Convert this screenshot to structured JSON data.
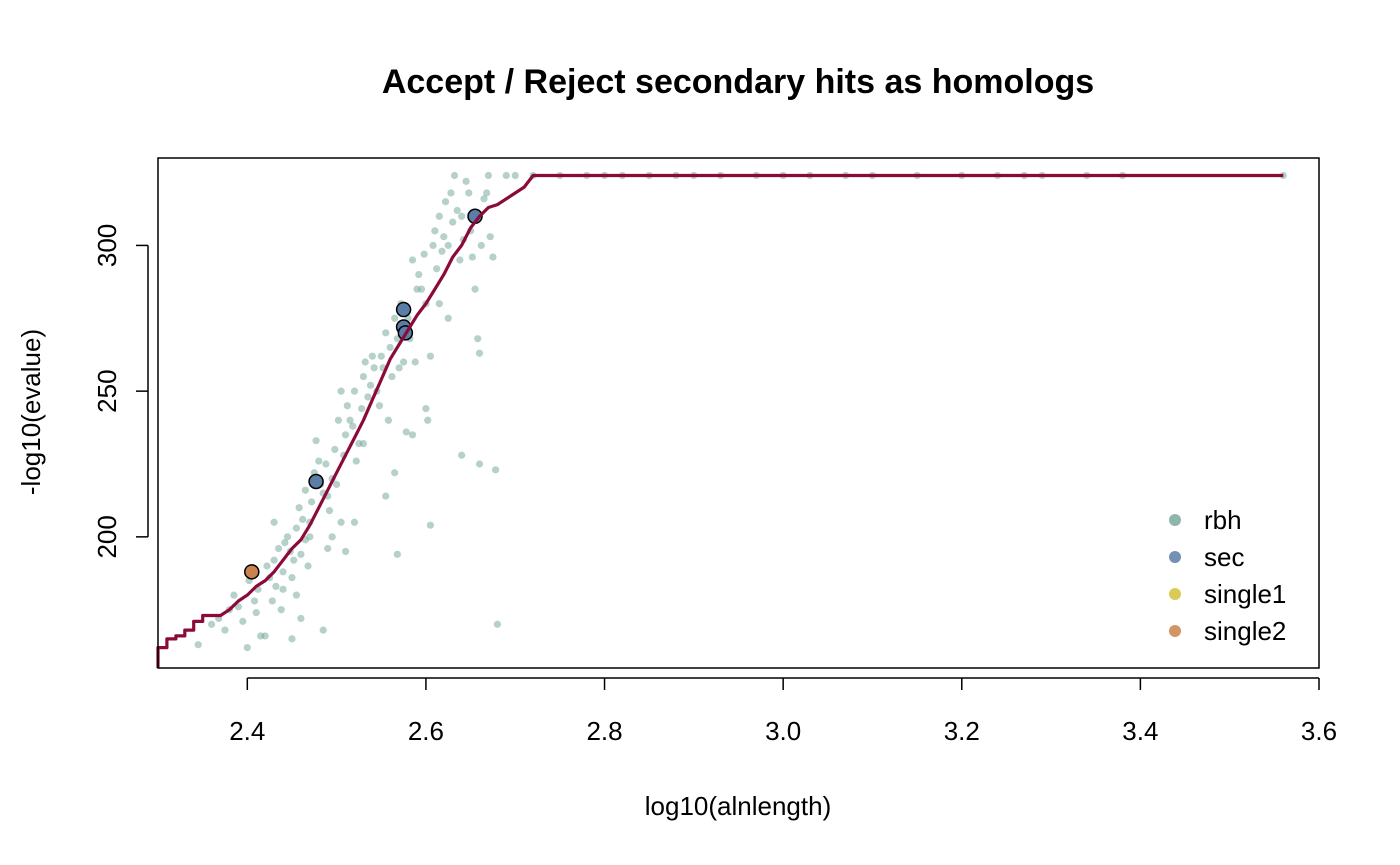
{
  "chart_data": {
    "type": "scatter",
    "title": "Accept / Reject secondary hits as homologs",
    "xlabel": "log10(alnlength)",
    "ylabel": "-log10(evalue)",
    "xlim": [
      2.3,
      3.6
    ],
    "ylim": [
      155,
      330
    ],
    "xticks": [
      "2.4",
      "2.6",
      "2.8",
      "3.0",
      "3.2",
      "3.4",
      "3.6"
    ],
    "yticks": [
      "200",
      "250",
      "300"
    ],
    "grid": false,
    "legend_position": "bottom-right",
    "legend": [
      {
        "name": "rbh",
        "color": "#7aa99f"
      },
      {
        "name": "sec",
        "color": "#5b7ea8"
      },
      {
        "name": "single1",
        "color": "#d4c13a"
      },
      {
        "name": "single2",
        "color": "#c9834e"
      }
    ],
    "colors": {
      "rbh": "#7aa99f",
      "sec": "#5b7ea8",
      "single1": "#d4c13a",
      "single2": "#c9834e",
      "threshold_line": "#8b0a3a"
    },
    "series": [
      {
        "name": "rbh",
        "points": [
          [
            2.345,
            163
          ],
          [
            2.36,
            170
          ],
          [
            2.368,
            172
          ],
          [
            2.375,
            168
          ],
          [
            2.38,
            175
          ],
          [
            2.385,
            180
          ],
          [
            2.39,
            176
          ],
          [
            2.395,
            171
          ],
          [
            2.4,
            162
          ],
          [
            2.402,
            185
          ],
          [
            2.408,
            178
          ],
          [
            2.41,
            174
          ],
          [
            2.412,
            182
          ],
          [
            2.415,
            166
          ],
          [
            2.42,
            166
          ],
          [
            2.422,
            190
          ],
          [
            2.425,
            186
          ],
          [
            2.428,
            178
          ],
          [
            2.43,
            192
          ],
          [
            2.432,
            183
          ],
          [
            2.435,
            196
          ],
          [
            2.438,
            175
          ],
          [
            2.44,
            188
          ],
          [
            2.442,
            198
          ],
          [
            2.445,
            200
          ],
          [
            2.448,
            195
          ],
          [
            2.45,
            186
          ],
          [
            2.45,
            165
          ],
          [
            2.452,
            192
          ],
          [
            2.455,
            203
          ],
          [
            2.455,
            180
          ],
          [
            2.458,
            210
          ],
          [
            2.46,
            194
          ],
          [
            2.462,
            206
          ],
          [
            2.465,
            199
          ],
          [
            2.465,
            216
          ],
          [
            2.468,
            190
          ],
          [
            2.47,
            205
          ],
          [
            2.472,
            212
          ],
          [
            2.475,
            222
          ],
          [
            2.477,
            233
          ],
          [
            2.48,
            226
          ],
          [
            2.482,
            218
          ],
          [
            2.485,
            215
          ],
          [
            2.488,
            225
          ],
          [
            2.49,
            214
          ],
          [
            2.492,
            209
          ],
          [
            2.495,
            200
          ],
          [
            2.495,
            220
          ],
          [
            2.498,
            230
          ],
          [
            2.5,
            218
          ],
          [
            2.502,
            240
          ],
          [
            2.505,
            250
          ],
          [
            2.505,
            205
          ],
          [
            2.508,
            228
          ],
          [
            2.51,
            235
          ],
          [
            2.512,
            245
          ],
          [
            2.515,
            240
          ],
          [
            2.518,
            238
          ],
          [
            2.52,
            250
          ],
          [
            2.522,
            226
          ],
          [
            2.525,
            232
          ],
          [
            2.528,
            244
          ],
          [
            2.53,
            255
          ],
          [
            2.532,
            260
          ],
          [
            2.535,
            248
          ],
          [
            2.538,
            252
          ],
          [
            2.54,
            262
          ],
          [
            2.542,
            258
          ],
          [
            2.545,
            250
          ],
          [
            2.548,
            245
          ],
          [
            2.55,
            262
          ],
          [
            2.552,
            258
          ],
          [
            2.555,
            270
          ],
          [
            2.558,
            240
          ],
          [
            2.56,
            265
          ],
          [
            2.562,
            255
          ],
          [
            2.565,
            275
          ],
          [
            2.568,
            268
          ],
          [
            2.57,
            258
          ],
          [
            2.572,
            280
          ],
          [
            2.575,
            260
          ],
          [
            2.578,
            236
          ],
          [
            2.58,
            275
          ],
          [
            2.582,
            268
          ],
          [
            2.585,
            295
          ],
          [
            2.588,
            260
          ],
          [
            2.59,
            285
          ],
          [
            2.592,
            290
          ],
          [
            2.595,
            285
          ],
          [
            2.598,
            297
          ],
          [
            2.6,
            280
          ],
          [
            2.602,
            240
          ],
          [
            2.605,
            262
          ],
          [
            2.608,
            300
          ],
          [
            2.61,
            305
          ],
          [
            2.612,
            292
          ],
          [
            2.615,
            310
          ],
          [
            2.618,
            298
          ],
          [
            2.62,
            303
          ],
          [
            2.622,
            315
          ],
          [
            2.625,
            300
          ],
          [
            2.628,
            318
          ],
          [
            2.63,
            308
          ],
          [
            2.632,
            324
          ],
          [
            2.635,
            312
          ],
          [
            2.638,
            295
          ],
          [
            2.64,
            310
          ],
          [
            2.642,
            302
          ],
          [
            2.645,
            322
          ],
          [
            2.648,
            318
          ],
          [
            2.65,
            305
          ],
          [
            2.652,
            296
          ],
          [
            2.655,
            285
          ],
          [
            2.658,
            268
          ],
          [
            2.66,
            263
          ],
          [
            2.662,
            300
          ],
          [
            2.665,
            316
          ],
          [
            2.668,
            318
          ],
          [
            2.67,
            324
          ],
          [
            2.672,
            303
          ],
          [
            2.675,
            296
          ],
          [
            2.678,
            223
          ],
          [
            2.68,
            170
          ],
          [
            2.69,
            324
          ],
          [
            2.7,
            324
          ],
          [
            2.72,
            324
          ],
          [
            2.75,
            324
          ],
          [
            2.78,
            324
          ],
          [
            2.8,
            324
          ],
          [
            2.82,
            324
          ],
          [
            2.85,
            324
          ],
          [
            2.88,
            324
          ],
          [
            2.9,
            324
          ],
          [
            2.93,
            324
          ],
          [
            2.97,
            324
          ],
          [
            3.0,
            324
          ],
          [
            3.03,
            324
          ],
          [
            3.07,
            324
          ],
          [
            3.1,
            324
          ],
          [
            3.15,
            324
          ],
          [
            3.2,
            324
          ],
          [
            3.24,
            324
          ],
          [
            3.27,
            324
          ],
          [
            3.29,
            324
          ],
          [
            3.34,
            324
          ],
          [
            3.38,
            324
          ],
          [
            3.56,
            324
          ],
          [
            2.43,
            205
          ],
          [
            2.44,
            182
          ],
          [
            2.46,
            172
          ],
          [
            2.47,
            200
          ],
          [
            2.49,
            196
          ],
          [
            2.51,
            195
          ],
          [
            2.52,
            205
          ],
          [
            2.53,
            232
          ],
          [
            2.555,
            214
          ],
          [
            2.565,
            222
          ],
          [
            2.568,
            194
          ],
          [
            2.585,
            235
          ],
          [
            2.6,
            244
          ],
          [
            2.605,
            204
          ],
          [
            2.615,
            280
          ],
          [
            2.625,
            275
          ],
          [
            2.64,
            228
          ],
          [
            2.66,
            225
          ],
          [
            2.485,
            168
          ]
        ]
      },
      {
        "name": "sec",
        "points": [
          [
            2.477,
            219
          ],
          [
            2.575,
            278
          ],
          [
            2.575,
            272
          ],
          [
            2.577,
            270
          ],
          [
            2.655,
            310
          ]
        ]
      },
      {
        "name": "single1",
        "points": []
      },
      {
        "name": "single2",
        "points": [
          [
            2.405,
            188
          ]
        ]
      }
    ],
    "threshold_line": [
      [
        2.3,
        155
      ],
      [
        2.3,
        162
      ],
      [
        2.31,
        162
      ],
      [
        2.31,
        165
      ],
      [
        2.32,
        165
      ],
      [
        2.32,
        166
      ],
      [
        2.33,
        166
      ],
      [
        2.33,
        168
      ],
      [
        2.34,
        168
      ],
      [
        2.34,
        171
      ],
      [
        2.35,
        171
      ],
      [
        2.35,
        173
      ],
      [
        2.36,
        173
      ],
      [
        2.37,
        173
      ],
      [
        2.37,
        173
      ],
      [
        2.38,
        175
      ],
      [
        2.39,
        178
      ],
      [
        2.4,
        180
      ],
      [
        2.41,
        183
      ],
      [
        2.42,
        185
      ],
      [
        2.43,
        188
      ],
      [
        2.44,
        192
      ],
      [
        2.45,
        196
      ],
      [
        2.46,
        199
      ],
      [
        2.47,
        204
      ],
      [
        2.48,
        210
      ],
      [
        2.49,
        216
      ],
      [
        2.5,
        222
      ],
      [
        2.51,
        228
      ],
      [
        2.52,
        234
      ],
      [
        2.53,
        240
      ],
      [
        2.54,
        247
      ],
      [
        2.55,
        254
      ],
      [
        2.56,
        261
      ],
      [
        2.57,
        266
      ],
      [
        2.58,
        271
      ],
      [
        2.59,
        276
      ],
      [
        2.6,
        280
      ],
      [
        2.61,
        285
      ],
      [
        2.62,
        290
      ],
      [
        2.63,
        296
      ],
      [
        2.64,
        300
      ],
      [
        2.65,
        306
      ],
      [
        2.66,
        310
      ],
      [
        2.67,
        313
      ],
      [
        2.68,
        314
      ],
      [
        2.69,
        316
      ],
      [
        2.7,
        318
      ],
      [
        2.71,
        320
      ],
      [
        2.72,
        324
      ],
      [
        3.0,
        324
      ],
      [
        3.3,
        324
      ],
      [
        3.56,
        324
      ]
    ]
  }
}
